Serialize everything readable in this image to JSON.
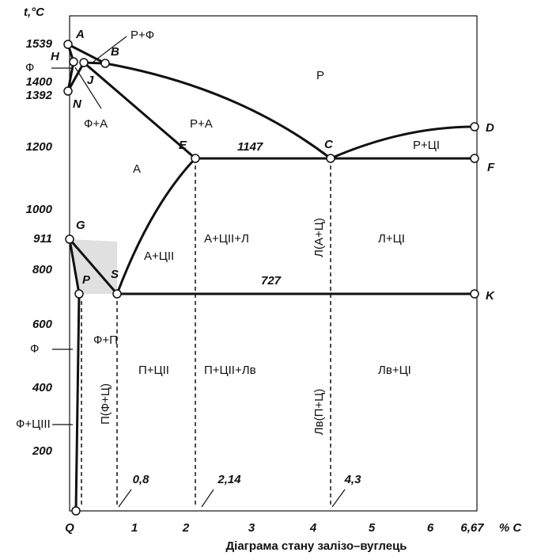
{
  "y_axis": {
    "label": "t,°C",
    "ticks": [
      "1539",
      "1400",
      "1392",
      "1200",
      "1000",
      "911",
      "800",
      "600",
      "400",
      "200"
    ]
  },
  "x_axis": {
    "label": "% C",
    "ticks": [
      "Q",
      "1",
      "2",
      "3",
      "4",
      "5",
      "6",
      "6,67"
    ],
    "marks": [
      "0,8",
      "2,14",
      "4,3"
    ]
  },
  "points": [
    "A",
    "H",
    "B",
    "J",
    "N",
    "E",
    "C",
    "D",
    "F",
    "G",
    "P",
    "S",
    "K"
  ],
  "isotherms": [
    "1147",
    "727"
  ],
  "regions": [
    "Р+Ф",
    "Р",
    "Ф",
    "Ф+А",
    "Р+А",
    "А",
    "Р+ЦI",
    "А+ЦII",
    "А+ЦII+Л",
    "Л(А+Ц)",
    "Л+ЦI",
    "Ф+П",
    "П(Ф+Ц)",
    "П+ЦII",
    "П+ЦII+Лв",
    "Лв(П+Ц)",
    "Лв+ЦI",
    "Ф",
    "Ф+ЦIII"
  ],
  "caption": "Діаграма стану залізо–вуглець"
}
